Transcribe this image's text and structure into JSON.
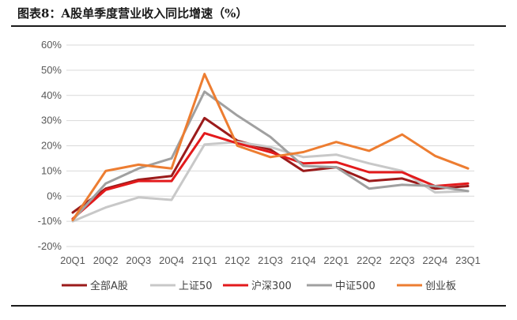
{
  "figure": {
    "title": "图表8：A股单季度营业收入同比增速（%）"
  },
  "chart_data": {
    "type": "line",
    "categories": [
      "20Q1",
      "20Q2",
      "20Q3",
      "20Q4",
      "21Q1",
      "21Q2",
      "21Q3",
      "21Q4",
      "22Q1",
      "22Q2",
      "22Q3",
      "22Q4",
      "23Q1"
    ],
    "ylim": [
      -20,
      60
    ],
    "yticks": [
      -20,
      -10,
      0,
      10,
      20,
      30,
      40,
      50,
      60
    ],
    "ytick_labels": [
      "-20%",
      "-10%",
      "0%",
      "10%",
      "20%",
      "30%",
      "40%",
      "50%",
      "60%"
    ],
    "grid": true,
    "legend": "bottom",
    "series": [
      {
        "name": "全部A股",
        "color": "#9b1b1b",
        "values": [
          -6.5,
          3.0,
          6.5,
          8.0,
          31.0,
          22.0,
          18.5,
          10.0,
          11.5,
          6.0,
          7.0,
          3.0,
          4.0
        ]
      },
      {
        "name": "上证50",
        "color": "#c8c8c8",
        "values": [
          -10.0,
          -4.5,
          -0.5,
          -1.5,
          20.5,
          21.5,
          19.5,
          15.5,
          16.5,
          13.0,
          10.0,
          1.5,
          2.0
        ]
      },
      {
        "name": "沪深300",
        "color": "#e31a1c",
        "values": [
          -9.0,
          2.5,
          6.0,
          6.0,
          25.0,
          21.0,
          17.5,
          13.0,
          13.5,
          9.5,
          9.5,
          4.0,
          5.0
        ]
      },
      {
        "name": "中证500",
        "color": "#a0a0a0",
        "values": [
          -9.5,
          5.0,
          11.0,
          15.0,
          41.5,
          32.0,
          23.5,
          12.0,
          11.5,
          3.0,
          4.5,
          4.0,
          2.0
        ]
      },
      {
        "name": "创业板",
        "color": "#ed7d31",
        "values": [
          -9.5,
          10.0,
          12.5,
          11.0,
          48.5,
          20.0,
          15.5,
          17.5,
          21.5,
          18.0,
          24.5,
          16.0,
          11.0
        ]
      }
    ]
  }
}
